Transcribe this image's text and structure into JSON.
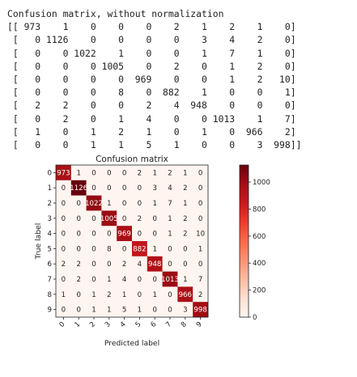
{
  "printout": {
    "heading": "Confusion matrix, without normalization",
    "lines": [
      "[[ 973    1    0    0    0    2    1    2    1    0]",
      " [   0 1126    0    0    0    0    3    4    2    0]",
      " [   0    0 1022    1    0    0    1    7    1    0]",
      " [   0    0    0 1005    0    2    0    1    2    0]",
      " [   0    0    0    0  969    0    0    1    2   10]",
      " [   0    0    0    8    0  882    1    0    0    1]",
      " [   2    2    0    0    2    4  948    0    0    0]",
      " [   0    2    0    1    4    0    0 1013    1    7]",
      " [   1    0    1    2    1    0    1    0  966    2]",
      " [   0    0    1    1    5    1    0    0    3  998]]"
    ]
  },
  "chart_data": {
    "type": "heatmap",
    "title": "Confusion matrix",
    "xlabel": "Predicted label",
    "ylabel": "True label",
    "x_ticks": [
      "0",
      "1",
      "2",
      "3",
      "4",
      "5",
      "6",
      "7",
      "8",
      "9"
    ],
    "y_ticks": [
      "0",
      "1",
      "2",
      "3",
      "4",
      "5",
      "6",
      "7",
      "8",
      "9"
    ],
    "values": [
      [
        973,
        1,
        0,
        0,
        0,
        2,
        1,
        2,
        1,
        0
      ],
      [
        0,
        1126,
        0,
        0,
        0,
        0,
        3,
        4,
        2,
        0
      ],
      [
        0,
        0,
        1022,
        1,
        0,
        0,
        1,
        7,
        1,
        0
      ],
      [
        0,
        0,
        0,
        1005,
        0,
        2,
        0,
        1,
        2,
        0
      ],
      [
        0,
        0,
        0,
        0,
        969,
        0,
        0,
        1,
        2,
        10
      ],
      [
        0,
        0,
        0,
        8,
        0,
        882,
        1,
        0,
        0,
        1
      ],
      [
        2,
        2,
        0,
        0,
        2,
        4,
        948,
        0,
        0,
        0
      ],
      [
        0,
        2,
        0,
        1,
        4,
        0,
        0,
        1013,
        1,
        7
      ],
      [
        1,
        0,
        1,
        2,
        1,
        0,
        1,
        0,
        966,
        2
      ],
      [
        0,
        0,
        1,
        1,
        5,
        1,
        0,
        0,
        3,
        998
      ]
    ],
    "colorbar": {
      "min": 0,
      "max": 1126,
      "ticks": [
        0,
        200,
        400,
        600,
        800,
        1000
      ],
      "cmap": [
        "#fff5f0",
        "#fee0d2",
        "#fcbba1",
        "#fc9272",
        "#fb6a4a",
        "#ef3b2c",
        "#cb181d",
        "#a50f15",
        "#67000d"
      ]
    }
  }
}
